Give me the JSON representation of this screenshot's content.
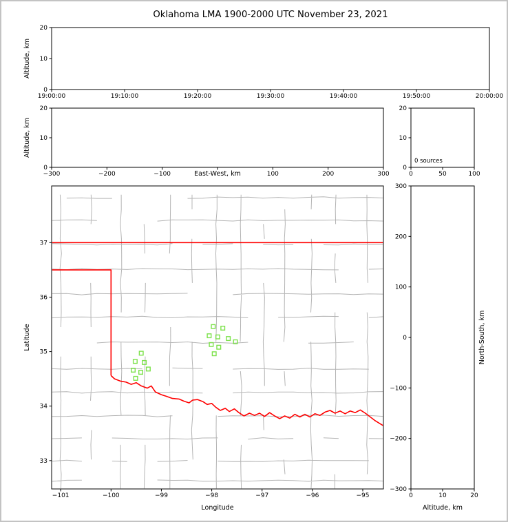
{
  "title": "Oklahoma LMA 1900-2000 UTC November 23, 2021",
  "colors": {
    "background": "#ffffff",
    "frame_border": "#c3c3c3",
    "axis": "#000000",
    "county_lines": "#b4b4b4",
    "state_boundary": "#ff0000",
    "station_marker": "#7ce24a"
  },
  "chart_data": [
    {
      "id": "time_height",
      "type": "scatter",
      "ylabel": "Altitude, km",
      "x_ticks": [
        "19:00:00",
        "19:10:00",
        "19:20:00",
        "19:30:00",
        "19:40:00",
        "19:50:00",
        "20:00:00"
      ],
      "ylim": [
        0,
        20
      ],
      "y_ticks": [
        0,
        10,
        20
      ],
      "points": []
    },
    {
      "id": "east_west_height",
      "type": "scatter",
      "xlabel": "East-West, km",
      "ylabel": "Altitude, km",
      "xlim": [
        -300,
        300
      ],
      "x_ticks": [
        -300,
        -200,
        -100,
        0,
        100,
        200,
        300
      ],
      "x_tick_labels": [
        "−300",
        "−200",
        "−100",
        "",
        "100",
        "200",
        "300"
      ],
      "ylim": [
        0,
        20
      ],
      "y_ticks": [
        0,
        10,
        20
      ],
      "points": []
    },
    {
      "id": "altitude_histogram",
      "type": "line",
      "annotation": "0 sources",
      "xlim": [
        0,
        100
      ],
      "x_ticks": [
        0,
        50,
        100
      ],
      "ylim": [
        0,
        20
      ],
      "y_ticks": [
        0,
        10,
        20
      ],
      "points": []
    },
    {
      "id": "plan_view_map",
      "type": "scatter",
      "xlabel": "Longitude",
      "ylabel": "Latitude",
      "xlim": [
        -101.18,
        -94.59
      ],
      "ylim": [
        32.48,
        38.04
      ],
      "x_ticks": [
        -101,
        -100,
        -99,
        -98,
        -97,
        -96,
        -95
      ],
      "y_ticks": [
        33,
        34,
        35,
        36,
        37
      ],
      "stations": [
        [
          -99.4,
          34.97
        ],
        [
          -99.52,
          34.82
        ],
        [
          -99.34,
          34.8
        ],
        [
          -99.56,
          34.66
        ],
        [
          -99.41,
          34.62
        ],
        [
          -99.26,
          34.68
        ],
        [
          -99.51,
          34.51
        ],
        [
          -97.97,
          35.46
        ],
        [
          -97.78,
          35.43
        ],
        [
          -98.05,
          35.29
        ],
        [
          -97.88,
          35.27
        ],
        [
          -97.67,
          35.24
        ],
        [
          -98.01,
          35.13
        ],
        [
          -97.86,
          35.08
        ],
        [
          -97.53,
          35.18
        ],
        [
          -97.95,
          34.96
        ]
      ],
      "state_boundary": {
        "north_border": [
          [
            -101.18,
            37.0
          ],
          [
            -94.59,
            37.0
          ]
        ],
        "panhandle_and_west": [
          [
            -101.18,
            36.5
          ],
          [
            -100.0,
            36.5
          ],
          [
            -100.0,
            34.56
          ]
        ],
        "red_river": [
          [
            -100.0,
            34.56
          ],
          [
            -99.93,
            34.5
          ],
          [
            -99.82,
            34.46
          ],
          [
            -99.7,
            34.44
          ],
          [
            -99.6,
            34.4
          ],
          [
            -99.5,
            34.43
          ],
          [
            -99.4,
            34.37
          ],
          [
            -99.28,
            34.33
          ],
          [
            -99.2,
            34.37
          ],
          [
            -99.12,
            34.26
          ],
          [
            -99.0,
            34.21
          ],
          [
            -98.9,
            34.18
          ],
          [
            -98.78,
            34.14
          ],
          [
            -98.65,
            34.13
          ],
          [
            -98.55,
            34.09
          ],
          [
            -98.45,
            34.06
          ],
          [
            -98.38,
            34.11
          ],
          [
            -98.28,
            34.12
          ],
          [
            -98.17,
            34.08
          ],
          [
            -98.09,
            34.03
          ],
          [
            -98.0,
            34.05
          ],
          [
            -97.92,
            33.98
          ],
          [
            -97.83,
            33.92
          ],
          [
            -97.73,
            33.96
          ],
          [
            -97.65,
            33.9
          ],
          [
            -97.55,
            33.95
          ],
          [
            -97.46,
            33.88
          ],
          [
            -97.36,
            33.82
          ],
          [
            -97.25,
            33.87
          ],
          [
            -97.15,
            33.83
          ],
          [
            -97.05,
            33.87
          ],
          [
            -96.95,
            33.81
          ],
          [
            -96.85,
            33.88
          ],
          [
            -96.75,
            33.82
          ],
          [
            -96.65,
            33.77
          ],
          [
            -96.55,
            33.82
          ],
          [
            -96.45,
            33.78
          ],
          [
            -96.35,
            33.85
          ],
          [
            -96.25,
            33.8
          ],
          [
            -96.15,
            33.85
          ],
          [
            -96.05,
            33.8
          ],
          [
            -95.95,
            33.86
          ],
          [
            -95.85,
            33.83
          ],
          [
            -95.75,
            33.89
          ],
          [
            -95.65,
            33.92
          ],
          [
            -95.55,
            33.87
          ],
          [
            -95.45,
            33.91
          ],
          [
            -95.35,
            33.86
          ],
          [
            -95.25,
            33.91
          ],
          [
            -95.15,
            33.88
          ],
          [
            -95.05,
            33.93
          ],
          [
            -94.95,
            33.87
          ],
          [
            -94.85,
            33.8
          ],
          [
            -94.75,
            33.73
          ],
          [
            -94.59,
            33.64
          ]
        ]
      }
    },
    {
      "id": "north_south_height",
      "type": "scatter",
      "xlabel": "Altitude, km",
      "ylabel": "North-South, km",
      "xlim": [
        0,
        20
      ],
      "x_ticks": [
        0,
        10,
        20
      ],
      "ylim": [
        -300,
        300
      ],
      "y_ticks": [
        -300,
        -200,
        -100,
        0,
        100,
        200,
        300
      ],
      "points": []
    }
  ]
}
